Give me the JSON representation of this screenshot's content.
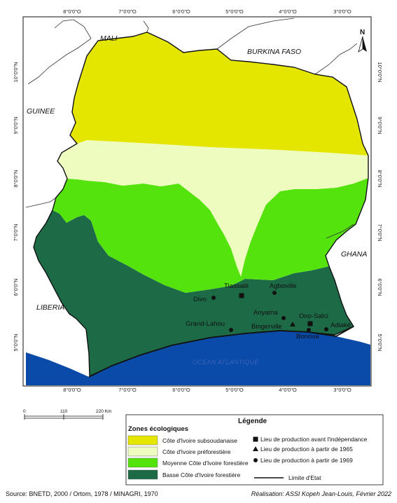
{
  "top_ticks": [
    "8°0'0\"O",
    "7°0'0\"O",
    "6°0'0\"O",
    "5°0'0\"O",
    "4°0'0\"O",
    "3°0'0\"O"
  ],
  "bottom_ticks": [
    "8°0'0\"O",
    "7°0'0\"O",
    "6°0'0\"O",
    "5°0'0\"O",
    "4°0'0\"O",
    "3°0'0\"O"
  ],
  "left_ticks": [
    "10°0'0\"N",
    "9°0'0\"N",
    "8°0'0\"N",
    "7°0'0\"N",
    "6°0'0\"N",
    "5°0'0\"N"
  ],
  "right_ticks": [
    "10°0'0\"N",
    "9°0'0\"N",
    "8°0'0\"N",
    "7°0'0\"N",
    "6°0'0\"N",
    "5°0'0\"N"
  ],
  "countries": {
    "mali": "MALI",
    "burkina": "BURKINA FASO",
    "guinee": "GUINEE",
    "ghana": "GHANA",
    "liberia": "LIBERIA"
  },
  "ocean_label": "OCEAN ATLANTIQUE",
  "north_label": "N",
  "cities": [
    {
      "name": "Divo",
      "symbol": "circle"
    },
    {
      "name": "Tiassalé",
      "symbol": "square"
    },
    {
      "name": "Agboville",
      "symbol": "circle"
    },
    {
      "name": "Anyama",
      "symbol": "circle"
    },
    {
      "name": "Ono-Salci",
      "symbol": "square"
    },
    {
      "name": "Grand-Lahou",
      "symbol": "circle"
    },
    {
      "name": "Bingerville",
      "symbol": "triangle"
    },
    {
      "name": "Adiaké",
      "symbol": "circle"
    },
    {
      "name": "Bonoua",
      "symbol": "circle"
    }
  ],
  "scale": {
    "labels": [
      "0",
      "110",
      "220 Km"
    ]
  },
  "legend": {
    "title": "Légende",
    "zones_title": "Zones écologiques",
    "zones": [
      {
        "label": "Côte d'Ivoire subsoudanaise",
        "color": "#e5e600"
      },
      {
        "label": "Côte d'Ivoire préforestière",
        "color": "#eefcc0"
      },
      {
        "label": "Moyenne Côte d'Ivoire forestière",
        "color": "#55e30d"
      },
      {
        "label": "Basse Côte d'Ivoire forestière",
        "color": "#1d6a47"
      }
    ],
    "symbols": [
      {
        "label": "Lieu de production avant l'indépendance",
        "symbol": "square"
      },
      {
        "label": "Lieu de production à partir de 1965",
        "symbol": "triangle"
      },
      {
        "label": "Lieu de production à partir de 1969",
        "symbol": "circle"
      }
    ],
    "boundary_label": "Limite d'Etat"
  },
  "colors": {
    "ocean": "#0a4aa8",
    "outline": "#111111"
  },
  "footer": {
    "source": "Source: BNETD, 2000 / Ortom, 1978 / MINAGRI, 1970",
    "credit": "Réalisation: ASSI Kopeh Jean-Louis, Février 2022"
  }
}
